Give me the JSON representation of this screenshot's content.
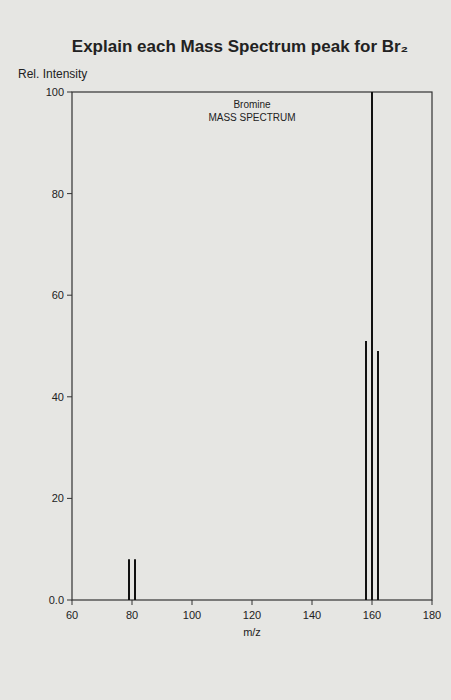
{
  "chart_data": {
    "type": "bar",
    "annotations": [
      "Explain each Mass Spectrum peak for Br₂"
    ],
    "title": "Bromine",
    "subtitle": "MASS SPECTRUM",
    "x_label": "m/z",
    "y_label": "Rel. Intensity",
    "x": [
      79,
      81,
      158,
      160,
      162
    ],
    "values": [
      8,
      8,
      51,
      100,
      49
    ],
    "color": "#111111",
    "xlim": [
      60,
      180
    ],
    "xticks": [
      60,
      80,
      100,
      120,
      140,
      160,
      180
    ],
    "ylim": [
      0,
      100
    ],
    "yticks": [
      {
        "value": 0,
        "label": "0.0"
      },
      20,
      40,
      60,
      80,
      100
    ],
    "grid": false
  }
}
